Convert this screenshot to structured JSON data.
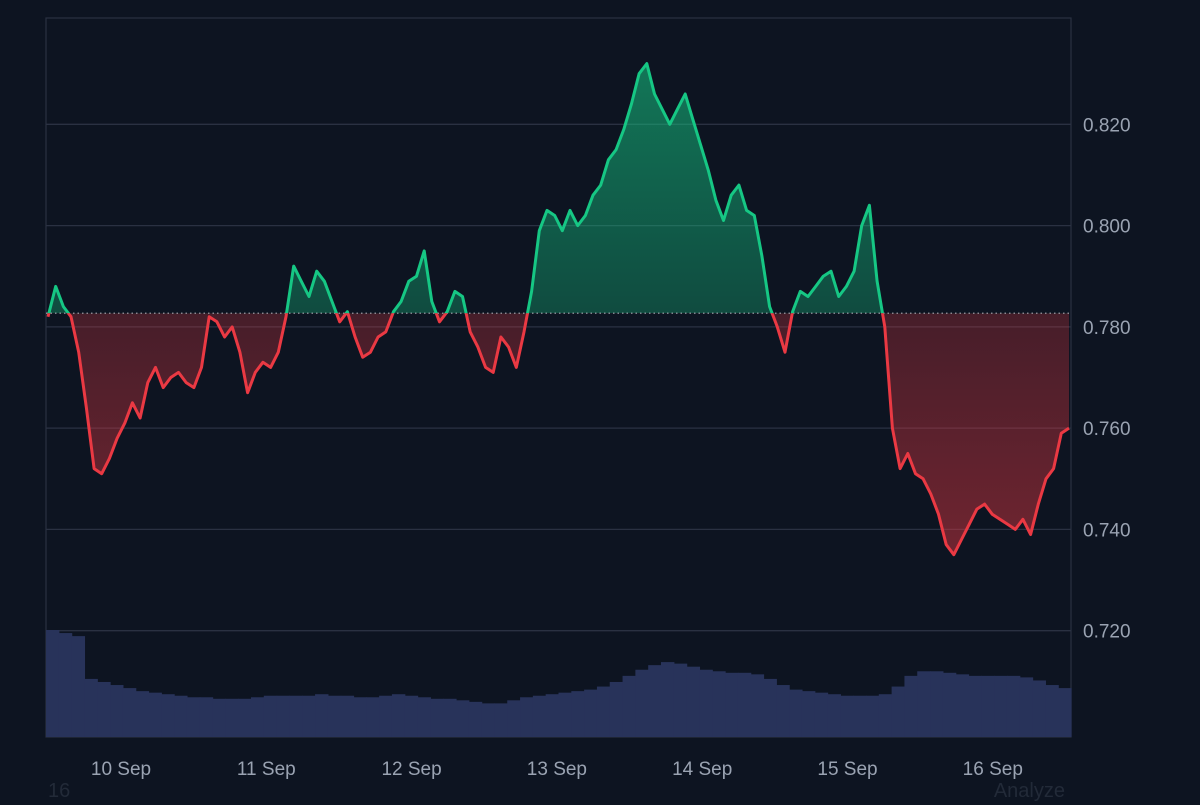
{
  "chart_data": {
    "type": "area",
    "title": "",
    "xlabel": "",
    "ylabel": "",
    "x_tick_labels": [
      "10 Sep",
      "11 Sep",
      "12 Sep",
      "13 Sep",
      "14 Sep",
      "15 Sep",
      "16 Sep"
    ],
    "y_tick_labels": [
      "0.720",
      "0.740",
      "0.760",
      "0.780",
      "0.800",
      "0.820"
    ],
    "ylim": [
      0.699,
      0.841
    ],
    "baseline": 0.7827,
    "baseline_style": "dotted",
    "grid": true,
    "colors": {
      "above_line": "#16c784",
      "below_line": "#ea3943",
      "above_fill": "#16c784",
      "below_fill": "#ea3943",
      "volume": "#28335a",
      "background": "#0d1421",
      "grid": "#2a3142"
    },
    "series": [
      {
        "values": [
          0.782,
          0.788,
          0.784,
          0.782,
          0.775,
          0.764,
          0.752,
          0.751,
          0.754,
          0.758,
          0.761,
          0.765,
          0.762,
          0.769,
          0.772,
          0.768,
          0.77,
          0.771,
          0.769,
          0.768,
          0.772,
          0.782,
          0.781,
          0.778,
          0.78,
          0.775,
          0.767,
          0.771,
          0.773,
          0.772,
          0.775,
          0.782,
          0.792,
          0.789,
          0.786,
          0.791,
          0.789,
          0.785,
          0.781,
          0.783,
          0.778,
          0.774,
          0.775,
          0.778,
          0.779,
          0.783,
          0.785,
          0.789,
          0.79,
          0.795,
          0.785,
          0.781,
          0.783,
          0.787,
          0.786,
          0.779,
          0.776,
          0.772,
          0.771,
          0.778,
          0.776,
          0.772,
          0.779,
          0.787,
          0.799,
          0.803,
          0.802,
          0.799,
          0.803,
          0.8,
          0.802,
          0.806,
          0.808,
          0.813,
          0.815,
          0.819,
          0.824,
          0.83,
          0.832,
          0.826,
          0.823,
          0.82,
          0.823,
          0.826,
          0.821,
          0.816,
          0.811,
          0.805,
          0.801,
          0.806,
          0.808,
          0.803,
          0.802,
          0.794,
          0.784,
          0.78,
          0.775,
          0.783,
          0.787,
          0.786,
          0.788,
          0.79,
          0.791,
          0.786,
          0.788,
          0.791,
          0.8,
          0.804,
          0.789,
          0.78,
          0.76,
          0.752,
          0.755,
          0.751,
          0.75,
          0.747,
          0.743,
          0.737,
          0.735,
          0.738,
          0.741,
          0.744,
          0.745,
          0.743,
          0.742,
          0.741,
          0.74,
          0.742,
          0.739,
          0.745,
          0.75,
          0.752,
          0.759,
          0.76
        ]
      }
    ],
    "volume": [
      0.7,
      0.68,
      0.66,
      0.38,
      0.36,
      0.34,
      0.32,
      0.3,
      0.29,
      0.28,
      0.27,
      0.26,
      0.26,
      0.25,
      0.25,
      0.25,
      0.26,
      0.27,
      0.27,
      0.27,
      0.27,
      0.28,
      0.27,
      0.27,
      0.26,
      0.26,
      0.27,
      0.28,
      0.27,
      0.26,
      0.25,
      0.25,
      0.24,
      0.23,
      0.22,
      0.22,
      0.24,
      0.26,
      0.27,
      0.28,
      0.29,
      0.3,
      0.31,
      0.33,
      0.36,
      0.4,
      0.44,
      0.47,
      0.49,
      0.48,
      0.46,
      0.44,
      0.43,
      0.42,
      0.42,
      0.41,
      0.38,
      0.34,
      0.31,
      0.3,
      0.29,
      0.28,
      0.27,
      0.27,
      0.27,
      0.28,
      0.33,
      0.4,
      0.43,
      0.43,
      0.42,
      0.41,
      0.4,
      0.4,
      0.4,
      0.4,
      0.39,
      0.37,
      0.34,
      0.32
    ]
  },
  "footer": {
    "left_text": "16",
    "right_text": "Analyze"
  }
}
